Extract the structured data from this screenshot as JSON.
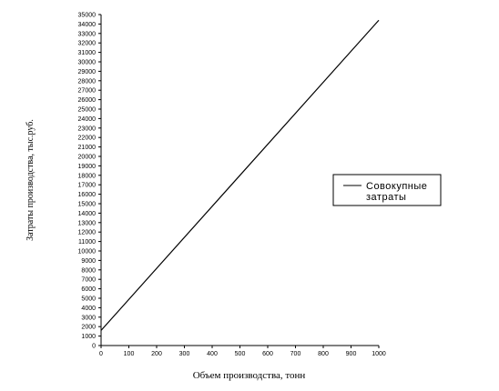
{
  "chart_data": {
    "type": "line",
    "xlabel": "Объем производства, тонн",
    "ylabel": "Затраты производства, тыс.руб.",
    "xlim": [
      0,
      1000
    ],
    "ylim": [
      0,
      35000
    ],
    "x_ticks": [
      "0",
      "100",
      "200",
      "300",
      "400",
      "500",
      "600",
      "700",
      "800",
      "900",
      "1000"
    ],
    "y_ticks": [
      "0",
      "1000",
      "2000",
      "3000",
      "4000",
      "5000",
      "6000",
      "7000",
      "8000",
      "9000",
      "10000",
      "11000",
      "12000",
      "13000",
      "14000",
      "15000",
      "16000",
      "17000",
      "18000",
      "19000",
      "20000",
      "21000",
      "22000",
      "23000",
      "24000",
      "25000",
      "26000",
      "27000",
      "28000",
      "29000",
      "30000",
      "31000",
      "32000",
      "33000",
      "34000",
      "35000"
    ],
    "grid": false,
    "legend_position": "right",
    "series": [
      {
        "name": "Совокупные затраты",
        "x": [
          0,
          1000
        ],
        "y": [
          1600,
          34400
        ]
      }
    ],
    "legend_lines": [
      "Совокупные",
      "затраты"
    ],
    "line_color": "#000000"
  }
}
